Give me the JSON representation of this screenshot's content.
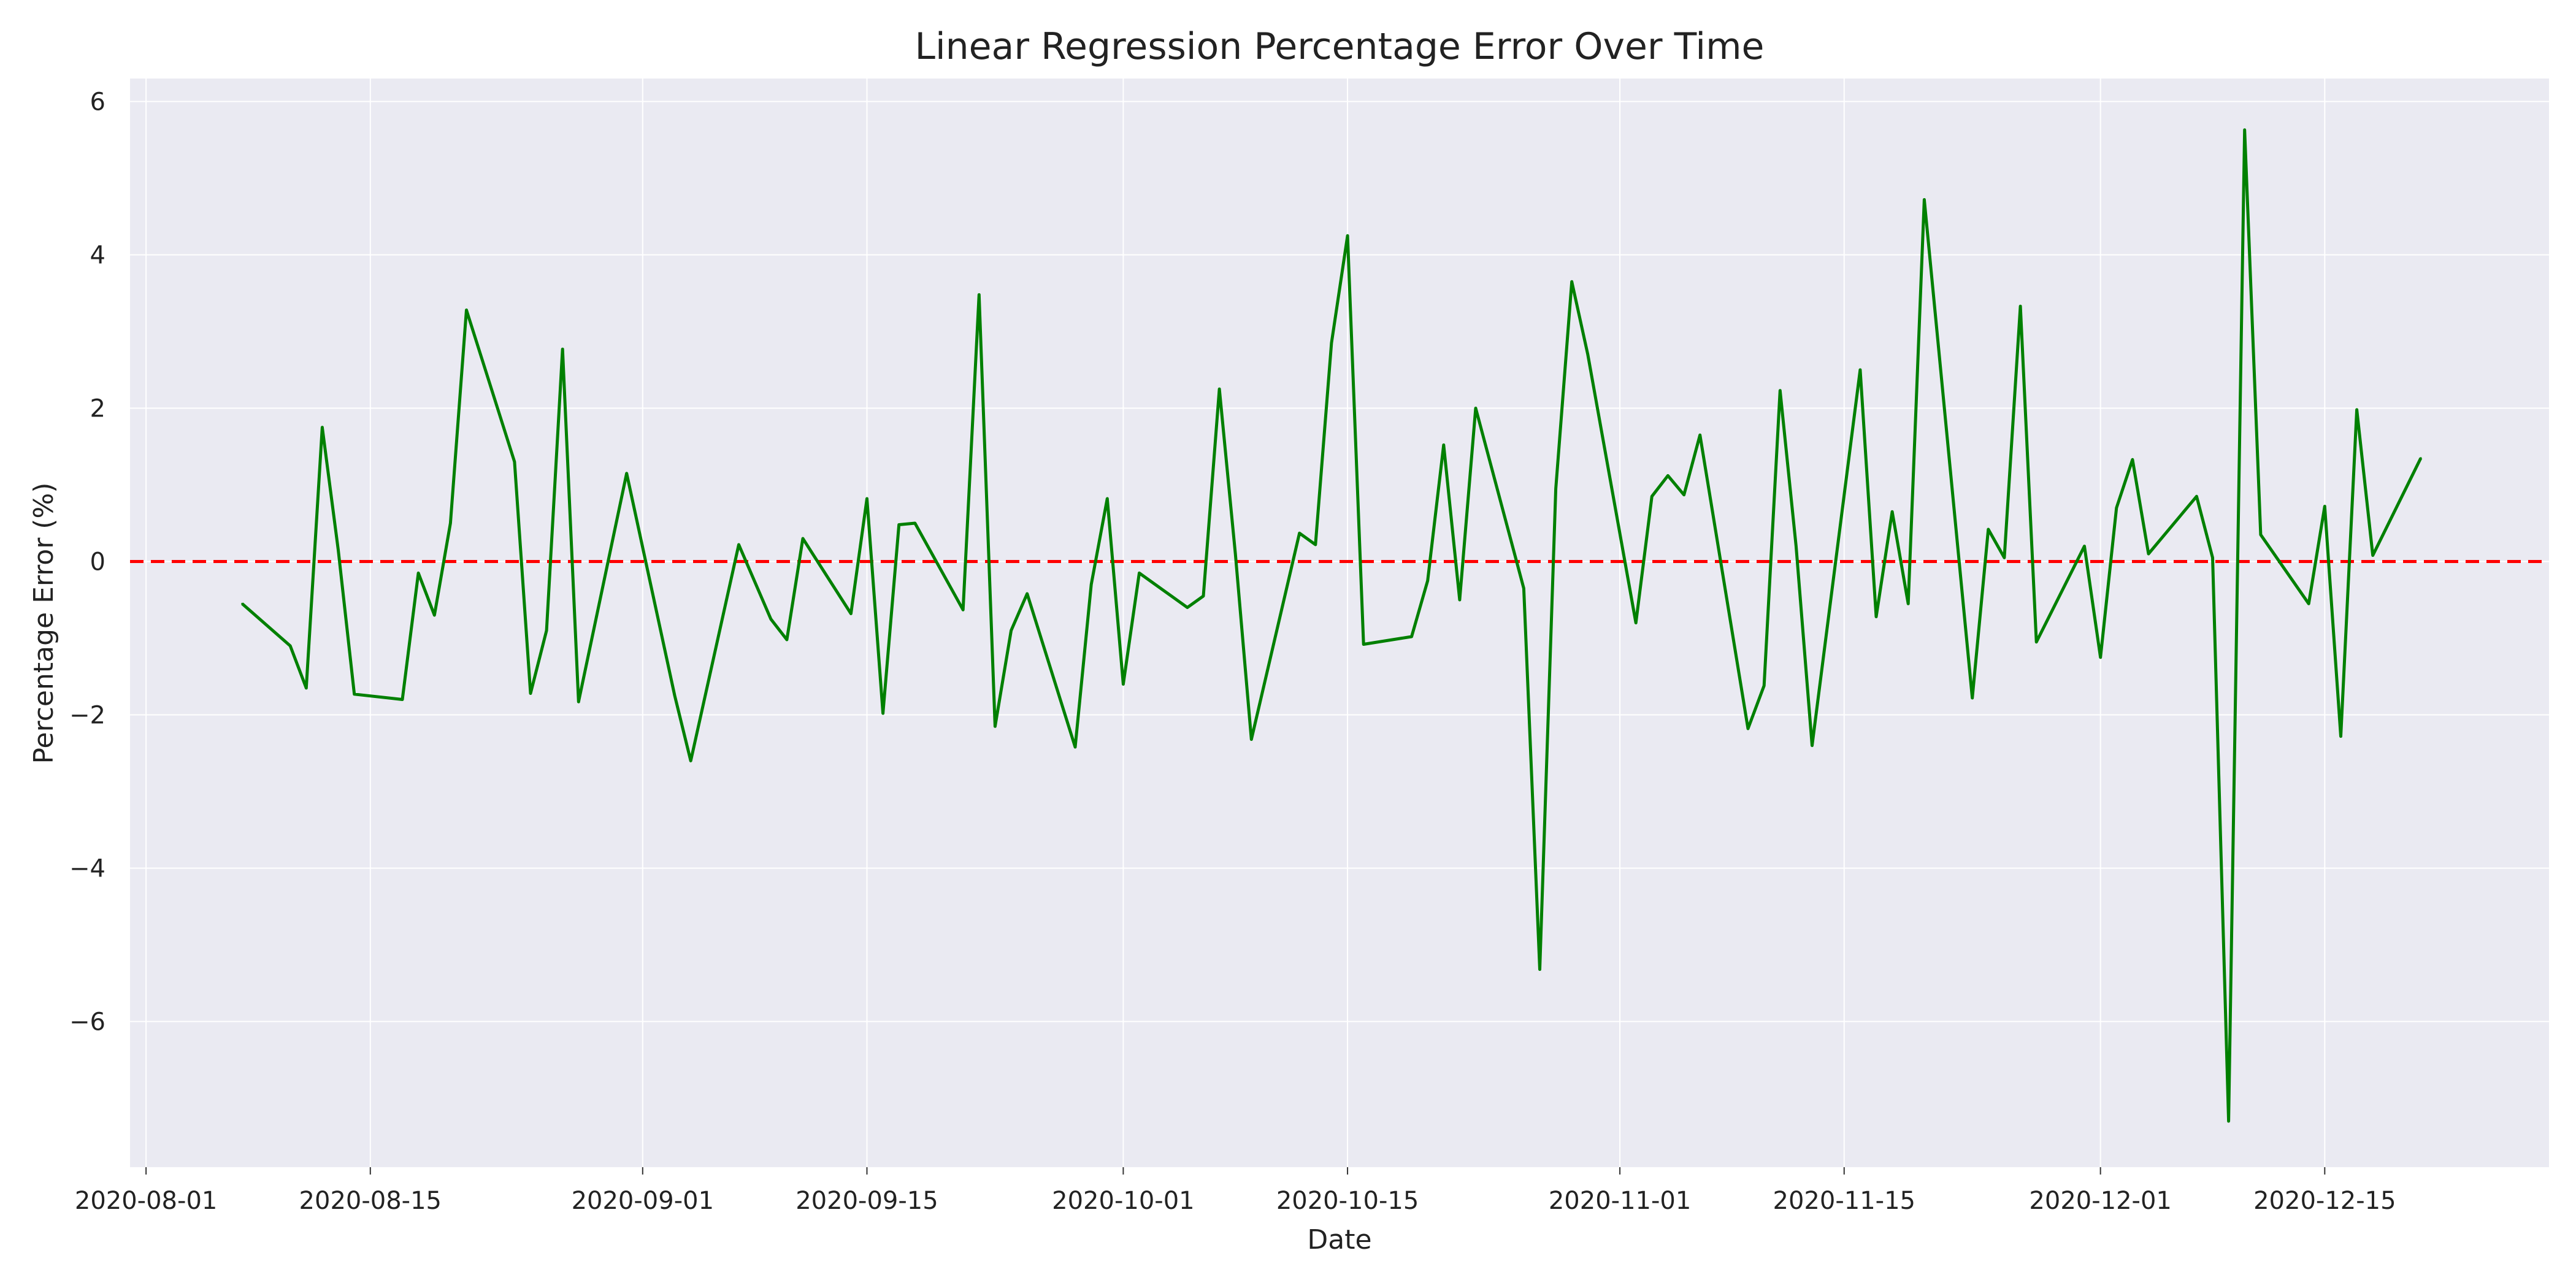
{
  "chart_data": {
    "type": "line",
    "title": "Linear Regression Percentage Error Over Time",
    "xlabel": "Date",
    "ylabel": "Percentage Error (%)",
    "x_axis": {
      "type": "date",
      "range": [
        "2020-07-31",
        "2020-12-29"
      ],
      "ticks": [
        "2020-08-01",
        "2020-08-15",
        "2020-09-01",
        "2020-09-15",
        "2020-10-01",
        "2020-10-15",
        "2020-11-01",
        "2020-11-15",
        "2020-12-01",
        "2020-12-15"
      ]
    },
    "y_axis": {
      "range": [
        -7.9,
        6.3
      ],
      "ticks": [
        6,
        4,
        2,
        0,
        -2,
        -4,
        -6
      ],
      "tick_labels": [
        "6",
        "4",
        "2",
        "0",
        "−2",
        "−4",
        "−6"
      ]
    },
    "grid": true,
    "background": "#eaeaf2",
    "series": [
      {
        "color": "#008000",
        "points": [
          [
            "2020-08-07",
            -0.55
          ],
          [
            "2020-08-10",
            -1.1
          ],
          [
            "2020-08-11",
            -1.65
          ],
          [
            "2020-08-12",
            1.75
          ],
          [
            "2020-08-13",
            0.15
          ],
          [
            "2020-08-14",
            -1.73
          ],
          [
            "2020-08-17",
            -1.8
          ],
          [
            "2020-08-18",
            -0.15
          ],
          [
            "2020-08-19",
            -0.7
          ],
          [
            "2020-08-20",
            0.5
          ],
          [
            "2020-08-21",
            3.28
          ],
          [
            "2020-08-24",
            1.3
          ],
          [
            "2020-08-25",
            -1.72
          ],
          [
            "2020-08-26",
            -0.9
          ],
          [
            "2020-08-27",
            2.77
          ],
          [
            "2020-08-28",
            -1.83
          ],
          [
            "2020-08-31",
            1.15
          ],
          [
            "2020-09-03",
            -1.75
          ],
          [
            "2020-09-04",
            -2.6
          ],
          [
            "2020-09-07",
            0.22
          ],
          [
            "2020-09-09",
            -0.75
          ],
          [
            "2020-09-10",
            -1.02
          ],
          [
            "2020-09-11",
            0.3
          ],
          [
            "2020-09-14",
            -0.68
          ],
          [
            "2020-09-15",
            0.82
          ],
          [
            "2020-09-16",
            -1.98
          ],
          [
            "2020-09-17",
            0.48
          ],
          [
            "2020-09-18",
            0.5
          ],
          [
            "2020-09-21",
            -0.63
          ],
          [
            "2020-09-22",
            3.48
          ],
          [
            "2020-09-23",
            -2.15
          ],
          [
            "2020-09-24",
            -0.9
          ],
          [
            "2020-09-25",
            -0.42
          ],
          [
            "2020-09-28",
            -2.42
          ],
          [
            "2020-09-29",
            -0.3
          ],
          [
            "2020-09-30",
            0.82
          ],
          [
            "2020-10-01",
            -1.6
          ],
          [
            "2020-10-02",
            -0.15
          ],
          [
            "2020-10-05",
            -0.6
          ],
          [
            "2020-10-06",
            -0.45
          ],
          [
            "2020-10-07",
            2.25
          ],
          [
            "2020-10-08",
            0.1
          ],
          [
            "2020-10-09",
            -2.32
          ],
          [
            "2020-10-12",
            0.37
          ],
          [
            "2020-10-13",
            0.22
          ],
          [
            "2020-10-14",
            2.85
          ],
          [
            "2020-10-15",
            4.25
          ],
          [
            "2020-10-16",
            -1.08
          ],
          [
            "2020-10-19",
            -0.98
          ],
          [
            "2020-10-20",
            -0.25
          ],
          [
            "2020-10-21",
            1.52
          ],
          [
            "2020-10-22",
            -0.5
          ],
          [
            "2020-10-23",
            2.0
          ],
          [
            "2020-10-26",
            -0.35
          ],
          [
            "2020-10-27",
            -5.32
          ],
          [
            "2020-10-28",
            0.95
          ],
          [
            "2020-10-29",
            3.65
          ],
          [
            "2020-10-30",
            2.7
          ],
          [
            "2020-11-02",
            -0.8
          ],
          [
            "2020-11-03",
            0.85
          ],
          [
            "2020-11-04",
            1.12
          ],
          [
            "2020-11-05",
            0.87
          ],
          [
            "2020-11-06",
            1.65
          ],
          [
            "2020-11-09",
            -2.18
          ],
          [
            "2020-11-10",
            -1.62
          ],
          [
            "2020-11-11",
            2.23
          ],
          [
            "2020-11-12",
            0.2
          ],
          [
            "2020-11-13",
            -2.4
          ],
          [
            "2020-11-16",
            2.5
          ],
          [
            "2020-11-17",
            -0.72
          ],
          [
            "2020-11-18",
            0.65
          ],
          [
            "2020-11-19",
            -0.55
          ],
          [
            "2020-11-20",
            4.72
          ],
          [
            "2020-11-23",
            -1.78
          ],
          [
            "2020-11-24",
            0.42
          ],
          [
            "2020-11-25",
            0.05
          ],
          [
            "2020-11-26",
            3.33
          ],
          [
            "2020-11-27",
            -1.05
          ],
          [
            "2020-11-30",
            0.2
          ],
          [
            "2020-12-01",
            -1.25
          ],
          [
            "2020-12-02",
            0.7
          ],
          [
            "2020-12-03",
            1.33
          ],
          [
            "2020-12-04",
            0.1
          ],
          [
            "2020-12-07",
            0.85
          ],
          [
            "2020-12-08",
            0.05
          ],
          [
            "2020-12-09",
            -7.3
          ],
          [
            "2020-12-10",
            5.63
          ],
          [
            "2020-12-11",
            0.35
          ],
          [
            "2020-12-14",
            -0.55
          ],
          [
            "2020-12-15",
            0.72
          ],
          [
            "2020-12-16",
            -2.28
          ],
          [
            "2020-12-17",
            1.98
          ],
          [
            "2020-12-18",
            0.08
          ],
          [
            "2020-12-21",
            1.35
          ]
        ]
      }
    ],
    "reference_line": {
      "y": 0,
      "color": "#ff0000",
      "style": "dashed"
    }
  }
}
